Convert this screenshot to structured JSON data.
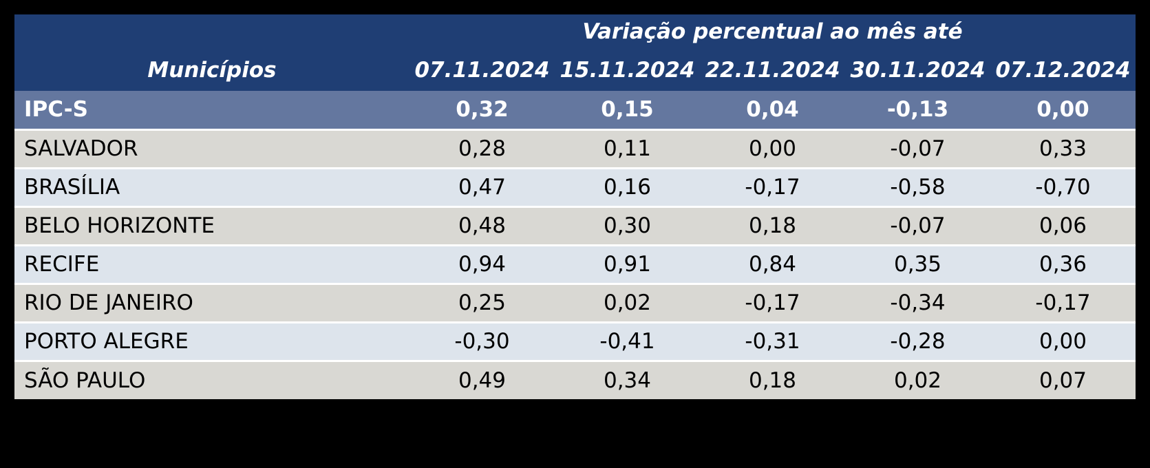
{
  "table": {
    "group_header": "Variação percentual ao mês até",
    "municipios_header": "Municípios",
    "date_columns": [
      "07.11.2024",
      "15.11.2024",
      "22.11.2024",
      "30.11.2024",
      "07.12.2024"
    ],
    "rows": [
      {
        "label": "IPC-S",
        "values": [
          "0,32",
          "0,15",
          "0,04",
          "-0,13",
          "0,00"
        ]
      },
      {
        "label": "SALVADOR",
        "values": [
          "0,28",
          "0,11",
          "0,00",
          "-0,07",
          "0,33"
        ]
      },
      {
        "label": "BRASÍLIA",
        "values": [
          "0,47",
          "0,16",
          "-0,17",
          "-0,58",
          "-0,70"
        ]
      },
      {
        "label": "BELO HORIZONTE",
        "values": [
          "0,48",
          "0,30",
          "0,18",
          "-0,07",
          "0,06"
        ]
      },
      {
        "label": "RECIFE",
        "values": [
          "0,94",
          "0,91",
          "0,84",
          "0,35",
          "0,36"
        ]
      },
      {
        "label": "RIO DE JANEIRO",
        "values": [
          "0,25",
          "0,02",
          "-0,17",
          "-0,34",
          "-0,17"
        ]
      },
      {
        "label": "PORTO ALEGRE",
        "values": [
          "-0,30",
          "-0,41",
          "-0,31",
          "-0,28",
          "0,00"
        ]
      },
      {
        "label": "SÃO PAULO",
        "values": [
          "0,49",
          "0,34",
          "0,18",
          "0,02",
          "0,07"
        ]
      }
    ]
  },
  "colors": {
    "page_background": "#000000",
    "header_background": "#1F3E74",
    "highlight_row_background": "#64779F",
    "row_gray": "#D9D8D3",
    "row_blue": "#DDE4EC",
    "separator": "#FFFFFF",
    "header_text": "#FFFFFF",
    "body_text": "#000000"
  },
  "chart_data": {
    "type": "table",
    "title": "Variação percentual ao mês até",
    "row_header": "Municípios",
    "columns": [
      "07.11.2024",
      "15.11.2024",
      "22.11.2024",
      "30.11.2024",
      "07.12.2024"
    ],
    "series": [
      {
        "name": "IPC-S",
        "values": [
          0.32,
          0.15,
          0.04,
          -0.13,
          0.0
        ]
      },
      {
        "name": "SALVADOR",
        "values": [
          0.28,
          0.11,
          0.0,
          -0.07,
          0.33
        ]
      },
      {
        "name": "BRASÍLIA",
        "values": [
          0.47,
          0.16,
          -0.17,
          -0.58,
          -0.7
        ]
      },
      {
        "name": "BELO HORIZONTE",
        "values": [
          0.48,
          0.3,
          0.18,
          -0.07,
          0.06
        ]
      },
      {
        "name": "RECIFE",
        "values": [
          0.94,
          0.91,
          0.84,
          0.35,
          0.36
        ]
      },
      {
        "name": "RIO DE JANEIRO",
        "values": [
          0.25,
          0.02,
          -0.17,
          -0.34,
          -0.17
        ]
      },
      {
        "name": "PORTO ALEGRE",
        "values": [
          -0.3,
          -0.41,
          -0.31,
          -0.28,
          0.0
        ]
      },
      {
        "name": "SÃO PAULO",
        "values": [
          0.49,
          0.34,
          0.18,
          0.02,
          0.07
        ]
      }
    ]
  }
}
